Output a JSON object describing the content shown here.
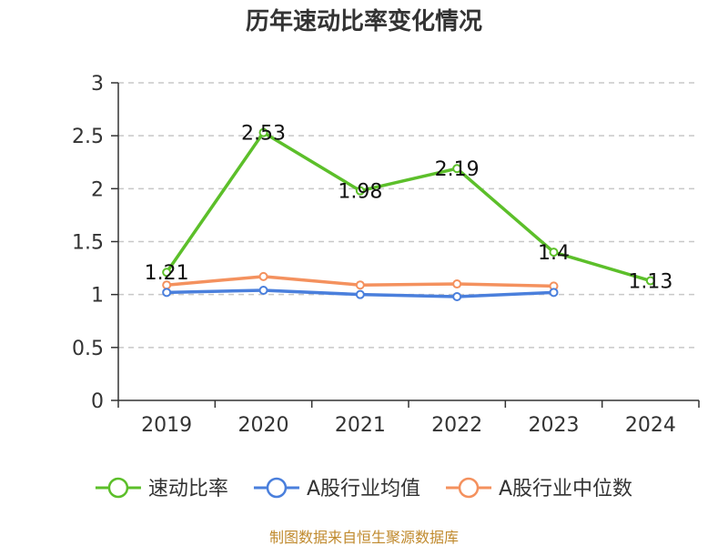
{
  "chart_data": {
    "type": "line",
    "title": "历年速动比率变化情况",
    "categories": [
      "2019",
      "2020",
      "2021",
      "2022",
      "2023",
      "2024"
    ],
    "ylim": [
      0,
      3
    ],
    "yticks": [
      "0",
      "0.5",
      "1",
      "1.5",
      "2",
      "2.5",
      "3"
    ],
    "grid": true,
    "legend_position": "bottom",
    "series": [
      {
        "name": "速动比率",
        "color": "#5cbf2a",
        "values": [
          1.21,
          2.53,
          1.98,
          2.19,
          1.4,
          1.13
        ],
        "labels": [
          "1.21",
          "2.53",
          "1.98",
          "2.19",
          "1.4",
          "1.13"
        ]
      },
      {
        "name": "A股行业均值",
        "color": "#4a7fdc",
        "values": [
          1.02,
          1.04,
          1.0,
          0.98,
          1.02,
          null
        ]
      },
      {
        "name": "A股行业中位数",
        "color": "#f4915e",
        "values": [
          1.09,
          1.17,
          1.09,
          1.1,
          1.08,
          null
        ]
      }
    ]
  },
  "source_text": "制图数据来自恒生聚源数据库"
}
